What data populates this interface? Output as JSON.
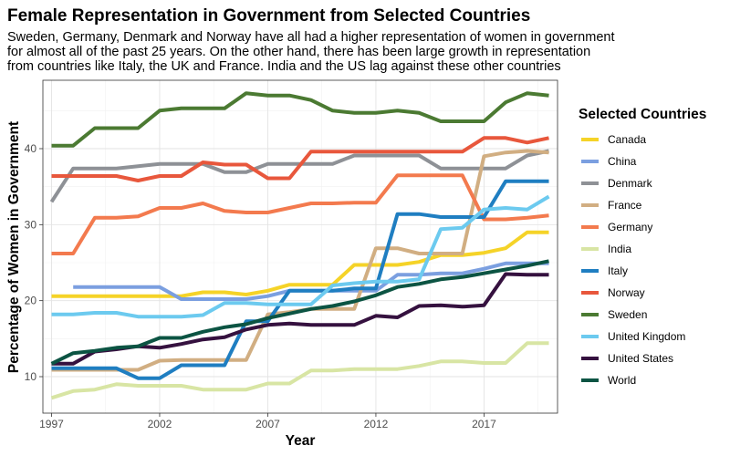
{
  "chart_data": {
    "type": "line",
    "title": "Female Representation in Government from Selected Countries",
    "subtitle": [
      "Sweden, Germany, Denmark and Norway have all had a higher representation of women in government",
      "for almost all of the past 25 years. On the other hand, there has been large growth in representation",
      "from countries like Italy, the UK and France. India and the US lag against these other countries"
    ],
    "xlabel": "Year",
    "ylabel": "Percentage of Women in Government",
    "xlim": [
      1996.6,
      2020.4
    ],
    "ylim": [
      5.2,
      49.0
    ],
    "x_ticks": [
      1997,
      2002,
      2007,
      2012,
      2017
    ],
    "y_ticks": [
      10,
      20,
      30,
      40
    ],
    "grid": true,
    "legend": {
      "title": "Selected Countries",
      "position": "right"
    },
    "series": [
      {
        "name": "Canada",
        "color": "#f5d328",
        "x": [
          1997,
          1998,
          1999,
          2000,
          2001,
          2002,
          2003,
          2004,
          2005,
          2006,
          2007,
          2008,
          2009,
          2010,
          2011,
          2012,
          2013,
          2014,
          2015,
          2016,
          2017,
          2018,
          2019,
          2020
        ],
        "values": [
          20.6,
          20.6,
          20.6,
          20.6,
          20.6,
          20.6,
          20.6,
          21.1,
          21.1,
          20.8,
          21.3,
          22.1,
          22.1,
          22.1,
          24.7,
          24.7,
          24.7,
          25.1,
          26.0,
          26.0,
          26.3,
          26.9,
          29.0,
          29.0
        ]
      },
      {
        "name": "China",
        "color": "#7b9fe0",
        "x": [
          1998,
          1999,
          2000,
          2001,
          2002,
          2003,
          2004,
          2005,
          2006,
          2007,
          2008,
          2009,
          2010,
          2011,
          2012,
          2013,
          2014,
          2015,
          2016,
          2017,
          2018,
          2019,
          2020
        ],
        "values": [
          21.8,
          21.8,
          21.8,
          21.8,
          21.8,
          20.2,
          20.2,
          20.2,
          20.2,
          20.6,
          21.3,
          21.3,
          21.3,
          21.3,
          21.3,
          23.4,
          23.4,
          23.6,
          23.6,
          24.2,
          24.9,
          24.9,
          24.9
        ]
      },
      {
        "name": "Denmark",
        "color": "#8e9196",
        "x": [
          1997,
          1998,
          1999,
          2000,
          2001,
          2002,
          2003,
          2004,
          2005,
          2006,
          2007,
          2008,
          2009,
          2010,
          2011,
          2012,
          2013,
          2014,
          2015,
          2016,
          2017,
          2018,
          2019,
          2020
        ],
        "values": [
          33.0,
          37.4,
          37.4,
          37.4,
          37.7,
          38.0,
          38.0,
          38.0,
          36.9,
          36.9,
          38.0,
          38.0,
          38.0,
          38.0,
          39.1,
          39.1,
          39.1,
          39.1,
          37.4,
          37.4,
          37.4,
          37.4,
          39.1,
          39.7
        ]
      },
      {
        "name": "France",
        "color": "#d1ae82",
        "x": [
          1997,
          1998,
          1999,
          2000,
          2001,
          2002,
          2003,
          2004,
          2005,
          2006,
          2007,
          2008,
          2009,
          2010,
          2011,
          2012,
          2013,
          2014,
          2015,
          2016,
          2017,
          2018,
          2019,
          2020
        ],
        "values": [
          10.9,
          10.9,
          10.9,
          10.9,
          10.9,
          12.1,
          12.2,
          12.2,
          12.2,
          12.2,
          18.2,
          18.5,
          18.9,
          18.9,
          18.9,
          26.9,
          26.9,
          26.2,
          26.2,
          26.2,
          39.0,
          39.5,
          39.7,
          39.5
        ]
      },
      {
        "name": "Germany",
        "color": "#f37a4e",
        "x": [
          1997,
          1998,
          1999,
          2000,
          2001,
          2002,
          2003,
          2004,
          2005,
          2006,
          2007,
          2008,
          2009,
          2010,
          2011,
          2012,
          2013,
          2014,
          2015,
          2016,
          2017,
          2018,
          2019,
          2020
        ],
        "values": [
          26.2,
          26.2,
          30.9,
          30.9,
          31.1,
          32.2,
          32.2,
          32.8,
          31.8,
          31.6,
          31.6,
          32.2,
          32.8,
          32.8,
          32.9,
          32.9,
          36.5,
          36.5,
          36.5,
          36.5,
          30.7,
          30.7,
          30.9,
          31.2
        ]
      },
      {
        "name": "India",
        "color": "#d8e5a4",
        "x": [
          1997,
          1998,
          1999,
          2000,
          2001,
          2002,
          2003,
          2004,
          2005,
          2006,
          2007,
          2008,
          2009,
          2010,
          2011,
          2012,
          2013,
          2014,
          2015,
          2016,
          2017,
          2018,
          2019,
          2020
        ],
        "values": [
          7.2,
          8.1,
          8.3,
          9.0,
          8.8,
          8.8,
          8.8,
          8.3,
          8.3,
          8.3,
          9.1,
          9.1,
          10.8,
          10.8,
          11.0,
          11.0,
          11.0,
          11.4,
          12.0,
          12.0,
          11.8,
          11.8,
          14.4,
          14.4
        ]
      },
      {
        "name": "Italy",
        "color": "#1f7ec1",
        "x": [
          1997,
          1998,
          1999,
          2000,
          2001,
          2002,
          2003,
          2004,
          2005,
          2006,
          2007,
          2008,
          2009,
          2010,
          2011,
          2012,
          2013,
          2014,
          2015,
          2016,
          2017,
          2018,
          2019,
          2020
        ],
        "values": [
          11.1,
          11.1,
          11.1,
          11.1,
          9.8,
          9.8,
          11.5,
          11.5,
          11.5,
          17.3,
          17.3,
          21.3,
          21.3,
          21.3,
          21.6,
          21.6,
          31.4,
          31.4,
          31.0,
          31.0,
          31.0,
          35.7,
          35.7,
          35.7
        ]
      },
      {
        "name": "Norway",
        "color": "#e8573c",
        "x": [
          1997,
          1998,
          1999,
          2000,
          2001,
          2002,
          2003,
          2004,
          2005,
          2006,
          2007,
          2008,
          2009,
          2010,
          2011,
          2012,
          2013,
          2014,
          2015,
          2016,
          2017,
          2018,
          2019,
          2020
        ],
        "values": [
          36.4,
          36.4,
          36.4,
          36.4,
          35.8,
          36.4,
          36.4,
          38.2,
          37.9,
          37.9,
          36.1,
          36.1,
          39.6,
          39.6,
          39.6,
          39.6,
          39.6,
          39.6,
          39.6,
          39.6,
          41.4,
          41.4,
          40.8,
          41.4
        ]
      },
      {
        "name": "Sweden",
        "color": "#4b7a32",
        "x": [
          1997,
          1998,
          1999,
          2000,
          2001,
          2002,
          2003,
          2004,
          2005,
          2006,
          2007,
          2008,
          2009,
          2010,
          2011,
          2012,
          2013,
          2014,
          2015,
          2016,
          2017,
          2018,
          2019,
          2020
        ],
        "values": [
          40.4,
          40.4,
          42.7,
          42.7,
          42.7,
          45.0,
          45.3,
          45.3,
          45.3,
          47.3,
          47.0,
          47.0,
          46.4,
          45.0,
          44.7,
          44.7,
          45.0,
          44.7,
          43.6,
          43.6,
          43.6,
          46.1,
          47.3,
          47.0
        ]
      },
      {
        "name": "United Kingdom",
        "color": "#6ccaef",
        "x": [
          1997,
          1998,
          1999,
          2000,
          2001,
          2002,
          2003,
          2004,
          2005,
          2006,
          2007,
          2008,
          2009,
          2010,
          2011,
          2012,
          2013,
          2014,
          2015,
          2016,
          2017,
          2018,
          2019,
          2020
        ],
        "values": [
          18.2,
          18.2,
          18.4,
          18.4,
          17.9,
          17.9,
          17.9,
          18.1,
          19.7,
          19.7,
          19.5,
          19.5,
          19.5,
          22.0,
          22.3,
          22.5,
          22.5,
          22.8,
          29.4,
          29.6,
          32.0,
          32.2,
          32.0,
          33.7
        ]
      },
      {
        "name": "United States",
        "color": "#35113f",
        "x": [
          1997,
          1998,
          1999,
          2000,
          2001,
          2002,
          2003,
          2004,
          2005,
          2006,
          2007,
          2008,
          2009,
          2010,
          2011,
          2012,
          2013,
          2014,
          2015,
          2016,
          2017,
          2018,
          2019,
          2020
        ],
        "values": [
          11.7,
          11.7,
          13.3,
          13.6,
          14.0,
          13.8,
          14.3,
          14.9,
          15.2,
          16.2,
          16.8,
          17.0,
          16.8,
          16.8,
          16.8,
          18.0,
          17.8,
          19.3,
          19.4,
          19.2,
          19.4,
          23.5,
          23.4,
          23.4
        ]
      },
      {
        "name": "World",
        "color": "#0c5443",
        "x": [
          1997,
          1998,
          1999,
          2000,
          2001,
          2002,
          2003,
          2004,
          2005,
          2006,
          2007,
          2008,
          2009,
          2010,
          2011,
          2012,
          2013,
          2014,
          2015,
          2016,
          2017,
          2018,
          2019,
          2020
        ],
        "values": [
          11.7,
          13.1,
          13.4,
          13.8,
          14.0,
          15.1,
          15.1,
          15.9,
          16.5,
          16.9,
          17.7,
          18.3,
          18.9,
          19.3,
          19.9,
          20.7,
          21.8,
          22.2,
          22.8,
          23.1,
          23.6,
          24.1,
          24.6,
          25.2
        ]
      }
    ]
  }
}
